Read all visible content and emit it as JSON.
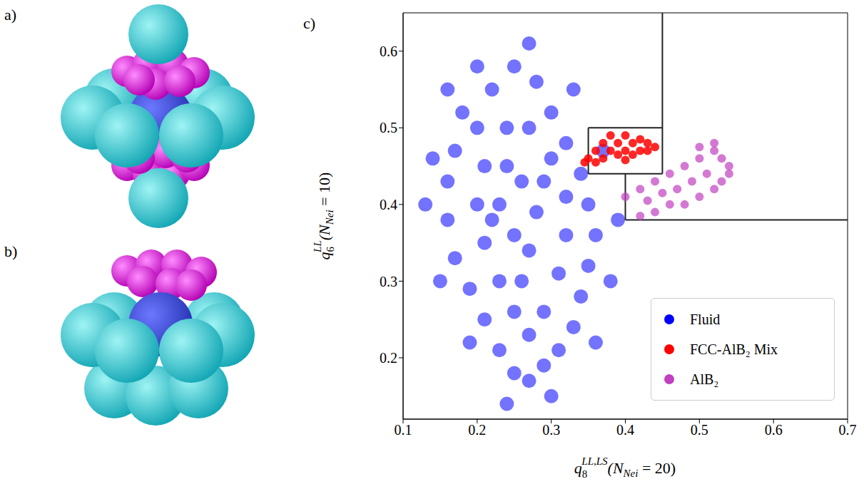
{
  "panels": [
    {
      "label": "a)"
    },
    {
      "label": "b)"
    }
  ],
  "chart_data": {
    "type": "scatter",
    "panel_label": "c)",
    "xlabel": {
      "main": "q",
      "sub": "8",
      "sup": "LL,LS",
      "arg": "(N",
      "arg_sub": "Nei",
      "tail": " = 20)"
    },
    "ylabel": {
      "main": "q",
      "sub": "6",
      "sup": "LL",
      "arg": "(N",
      "arg_sub": "Nei",
      "tail": " = 10)"
    },
    "xlim": [
      0.1,
      0.7
    ],
    "xticks": [
      0.1,
      0.2,
      0.3,
      0.4,
      0.5,
      0.6,
      0.7
    ],
    "ylim": [
      0.12,
      0.65
    ],
    "yticks": [
      0.2,
      0.3,
      0.4,
      0.5,
      0.6
    ],
    "legend": "lower right",
    "series": [
      {
        "name": "Fluid",
        "color": "#0000ff",
        "x": [
          0.2,
          0.22,
          0.25,
          0.28,
          0.3,
          0.32,
          0.34,
          0.35,
          0.36,
          0.35,
          0.34,
          0.33,
          0.31,
          0.29,
          0.27,
          0.25,
          0.23,
          0.21,
          0.19,
          0.17,
          0.16,
          0.16,
          0.17,
          0.18,
          0.21,
          0.24,
          0.27,
          0.3,
          0.32,
          0.32,
          0.31,
          0.29,
          0.27,
          0.25,
          0.23,
          0.21,
          0.2,
          0.23,
          0.26,
          0.28,
          0.27,
          0.25,
          0.24,
          0.29,
          0.26,
          0.22,
          0.14,
          0.13,
          0.15,
          0.19,
          0.24,
          0.3,
          0.36,
          0.38,
          0.39,
          0.37,
          0.33,
          0.27,
          0.2,
          0.16
        ],
        "values": [
          0.5,
          0.55,
          0.58,
          0.56,
          0.52,
          0.48,
          0.44,
          0.4,
          0.36,
          0.32,
          0.28,
          0.24,
          0.21,
          0.19,
          0.17,
          0.18,
          0.21,
          0.25,
          0.29,
          0.33,
          0.38,
          0.43,
          0.47,
          0.52,
          0.45,
          0.5,
          0.5,
          0.46,
          0.41,
          0.36,
          0.31,
          0.26,
          0.23,
          0.26,
          0.3,
          0.35,
          0.4,
          0.4,
          0.43,
          0.39,
          0.34,
          0.36,
          0.45,
          0.43,
          0.3,
          0.38,
          0.46,
          0.4,
          0.3,
          0.22,
          0.14,
          0.15,
          0.22,
          0.3,
          0.38,
          0.47,
          0.55,
          0.61,
          0.58,
          0.55
        ]
      },
      {
        "name": "FCC-AlB₂ Mix",
        "color": "#ff0000",
        "x": [
          0.35,
          0.36,
          0.37,
          0.38,
          0.39,
          0.4,
          0.41,
          0.42,
          0.43,
          0.44,
          0.38,
          0.4,
          0.42,
          0.37,
          0.39,
          0.41,
          0.43,
          0.36,
          0.345,
          0.4
        ],
        "values": [
          0.46,
          0.47,
          0.48,
          0.47,
          0.48,
          0.47,
          0.48,
          0.47,
          0.48,
          0.475,
          0.49,
          0.49,
          0.485,
          0.46,
          0.465,
          0.465,
          0.47,
          0.455,
          0.455,
          0.458
        ]
      },
      {
        "name": "AlB₂",
        "color": "#c040c0",
        "x": [
          0.4,
          0.42,
          0.44,
          0.46,
          0.48,
          0.5,
          0.52,
          0.53,
          0.54,
          0.53,
          0.52,
          0.5,
          0.48,
          0.46,
          0.44,
          0.42,
          0.49,
          0.51,
          0.47,
          0.45,
          0.52,
          0.5,
          0.54,
          0.43
        ],
        "values": [
          0.41,
          0.42,
          0.43,
          0.44,
          0.45,
          0.46,
          0.47,
          0.46,
          0.45,
          0.43,
          0.42,
          0.41,
          0.4,
          0.4,
          0.39,
          0.385,
          0.43,
          0.44,
          0.42,
          0.415,
          0.48,
          0.475,
          0.44,
          0.405
        ]
      }
    ],
    "boundaries": [
      [
        [
          0.35,
          0.44
        ],
        [
          0.45,
          0.44
        ]
      ],
      [
        [
          0.35,
          0.44
        ],
        [
          0.35,
          0.5
        ]
      ],
      [
        [
          0.35,
          0.5
        ],
        [
          0.45,
          0.5
        ]
      ],
      [
        [
          0.45,
          0.44
        ],
        [
          0.45,
          0.65
        ]
      ],
      [
        [
          0.4,
          0.38
        ],
        [
          0.4,
          0.44
        ]
      ],
      [
        [
          0.4,
          0.38
        ],
        [
          0.7,
          0.38
        ]
      ]
    ]
  }
}
